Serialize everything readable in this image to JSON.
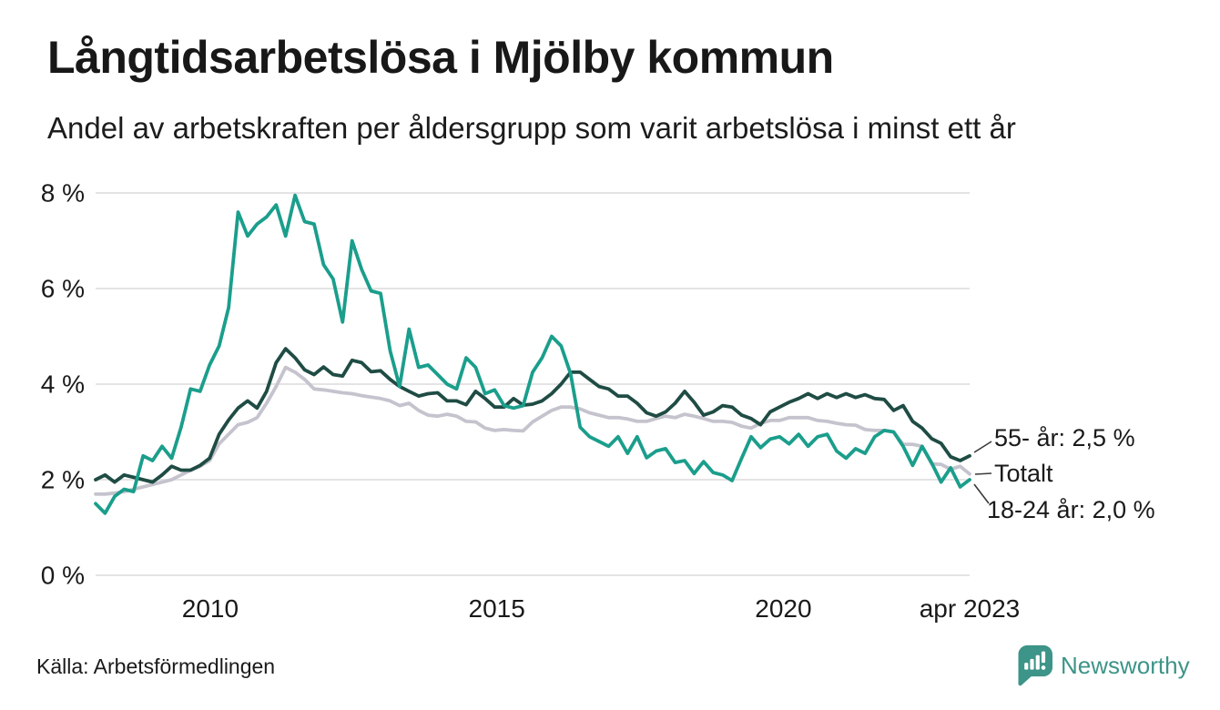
{
  "header": {
    "title": "Långtidsarbetslösa i Mjölby kommun",
    "subtitle": "Andel av arbetskraften per åldersgrupp som varit arbetslösa i minst ett år"
  },
  "footer": {
    "source": "Källa: Arbetsförmedlingen",
    "brand": "Newsworthy"
  },
  "colors": {
    "youth_line": "#1b9e8c",
    "senior_line": "#1f4c44",
    "total_line": "#c5c3cd",
    "gridline": "#e4e4e4",
    "text": "#1a1a1a",
    "brand_teal": "#3d9488",
    "connector": "#3a3a3a"
  },
  "chart_data": {
    "type": "line",
    "title": "Långtidsarbetslösa i Mjölby kommun",
    "subtitle": "Andel av arbetskraften per åldersgrupp som varit arbetslösa i minst ett år",
    "xlabel": "",
    "ylabel": "",
    "grid": "horizontal",
    "legend_position": "end-of-line",
    "x_start": 2008.0,
    "x_end": 2023.25,
    "ylim": [
      0,
      8
    ],
    "x_ticks": [
      {
        "value": 2010,
        "label": "2010"
      },
      {
        "value": 2015,
        "label": "2015"
      },
      {
        "value": 2020,
        "label": "2020"
      },
      {
        "value": 2023.25,
        "label": "apr 2023"
      }
    ],
    "y_ticks": [
      {
        "value": 0,
        "label": "0 %"
      },
      {
        "value": 2,
        "label": "2 %"
      },
      {
        "value": 4,
        "label": "4 %"
      },
      {
        "value": 6,
        "label": "6 %"
      },
      {
        "value": 8,
        "label": "8 %"
      }
    ],
    "series": [
      {
        "name": "Totalt",
        "end_label": "Totalt",
        "end_value": "2,1 %",
        "color": "#c5c3cd",
        "values": [
          1.7,
          1.7,
          1.72,
          1.75,
          1.8,
          1.85,
          1.9,
          1.95,
          2.0,
          2.1,
          2.2,
          2.28,
          2.4,
          2.75,
          2.95,
          3.15,
          3.2,
          3.3,
          3.6,
          3.95,
          4.35,
          4.25,
          4.1,
          3.9,
          3.88,
          3.85,
          3.82,
          3.8,
          3.76,
          3.73,
          3.7,
          3.65,
          3.55,
          3.6,
          3.45,
          3.35,
          3.33,
          3.37,
          3.33,
          3.22,
          3.21,
          3.08,
          3.03,
          3.05,
          3.03,
          3.02,
          3.21,
          3.33,
          3.45,
          3.52,
          3.52,
          3.48,
          3.4,
          3.35,
          3.3,
          3.3,
          3.27,
          3.22,
          3.22,
          3.28,
          3.33,
          3.3,
          3.37,
          3.33,
          3.28,
          3.22,
          3.22,
          3.2,
          3.12,
          3.08,
          3.18,
          3.24,
          3.24,
          3.3,
          3.3,
          3.3,
          3.24,
          3.22,
          3.18,
          3.15,
          3.14,
          3.05,
          3.03,
          3.03,
          3.0,
          2.74,
          2.74,
          2.7,
          2.33,
          2.32,
          2.22,
          2.28,
          2.12
        ]
      },
      {
        "name": "55- år",
        "end_label": "55- år: 2,5 %",
        "end_value": "2,5 %",
        "color": "#1f4c44",
        "values": [
          2.0,
          2.1,
          1.95,
          2.1,
          2.05,
          2.0,
          1.95,
          2.1,
          2.28,
          2.2,
          2.2,
          2.3,
          2.45,
          2.95,
          3.25,
          3.5,
          3.65,
          3.5,
          3.85,
          4.45,
          4.74,
          4.55,
          4.3,
          4.2,
          4.36,
          4.2,
          4.17,
          4.5,
          4.45,
          4.26,
          4.28,
          4.1,
          3.95,
          3.85,
          3.75,
          3.8,
          3.82,
          3.65,
          3.65,
          3.57,
          3.85,
          3.7,
          3.52,
          3.52,
          3.7,
          3.56,
          3.58,
          3.65,
          3.8,
          4.0,
          4.25,
          4.25,
          4.1,
          3.95,
          3.9,
          3.75,
          3.75,
          3.6,
          3.4,
          3.33,
          3.42,
          3.6,
          3.85,
          3.62,
          3.35,
          3.42,
          3.55,
          3.52,
          3.35,
          3.28,
          3.15,
          3.42,
          3.52,
          3.62,
          3.7,
          3.8,
          3.7,
          3.8,
          3.72,
          3.8,
          3.72,
          3.78,
          3.7,
          3.68,
          3.45,
          3.55,
          3.22,
          3.08,
          2.86,
          2.76,
          2.48,
          2.4,
          2.5
        ]
      },
      {
        "name": "18-24 år",
        "end_label": "18-24 år: 2,0 %",
        "end_value": "2,0 %",
        "color": "#1b9e8c",
        "values": [
          1.5,
          1.3,
          1.65,
          1.8,
          1.75,
          2.5,
          2.4,
          2.7,
          2.45,
          3.1,
          3.9,
          3.85,
          4.4,
          4.8,
          5.6,
          7.6,
          7.1,
          7.35,
          7.5,
          7.75,
          7.1,
          7.95,
          7.4,
          7.35,
          6.5,
          6.2,
          5.3,
          7.0,
          6.4,
          5.95,
          5.9,
          4.7,
          3.95,
          5.15,
          4.35,
          4.4,
          4.2,
          4.0,
          3.9,
          4.55,
          4.35,
          3.8,
          3.88,
          3.55,
          3.5,
          3.55,
          4.25,
          4.55,
          5.0,
          4.8,
          4.22,
          3.1,
          2.9,
          2.8,
          2.7,
          2.9,
          2.55,
          2.9,
          2.46,
          2.6,
          2.65,
          2.36,
          2.4,
          2.13,
          2.38,
          2.15,
          2.1,
          1.98,
          2.45,
          2.9,
          2.67,
          2.85,
          2.9,
          2.75,
          2.95,
          2.7,
          2.9,
          2.95,
          2.6,
          2.45,
          2.65,
          2.55,
          2.9,
          3.03,
          3.0,
          2.7,
          2.3,
          2.7,
          2.35,
          1.95,
          2.25,
          1.85,
          2.0
        ]
      }
    ]
  }
}
